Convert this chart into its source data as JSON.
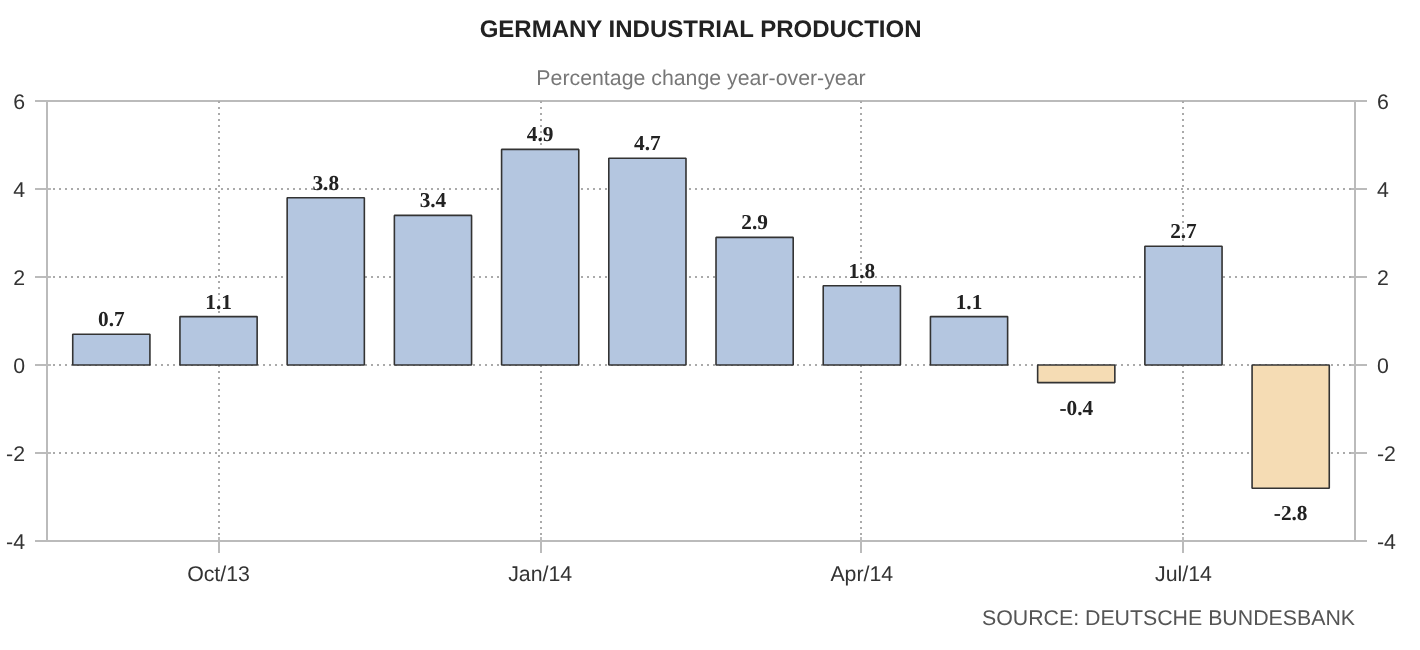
{
  "chart_data": {
    "type": "bar",
    "title": "GERMANY INDUSTRIAL PRODUCTION",
    "subtitle": "Percentage change year-over-year",
    "categories": [
      null,
      "Oct/13",
      null,
      null,
      "Jan/14",
      null,
      null,
      "Apr/14",
      null,
      null,
      "Jul/14",
      null
    ],
    "values": [
      0.7,
      1.1,
      3.8,
      3.4,
      4.9,
      4.7,
      2.9,
      1.8,
      1.1,
      -0.4,
      2.7,
      -2.8
    ],
    "colors": [
      "#b4c6e0",
      "#b4c6e0",
      "#b4c6e0",
      "#b4c6e0",
      "#b4c6e0",
      "#b4c6e0",
      "#b4c6e0",
      "#b4c6e0",
      "#b4c6e0",
      "#f5dcb4",
      "#b4c6e0",
      "#f5dcb4"
    ],
    "ylim": [
      -4,
      6
    ],
    "yticks": [
      -4,
      -2,
      0,
      2,
      4,
      6
    ],
    "y2lim": [
      -4,
      6
    ],
    "y2ticks": [
      -4,
      -2,
      0,
      2,
      4,
      6
    ],
    "grid": true,
    "data_labels": true,
    "annotations": [
      "SOURCE: DEUTSCHE BUNDESBANK"
    ]
  }
}
